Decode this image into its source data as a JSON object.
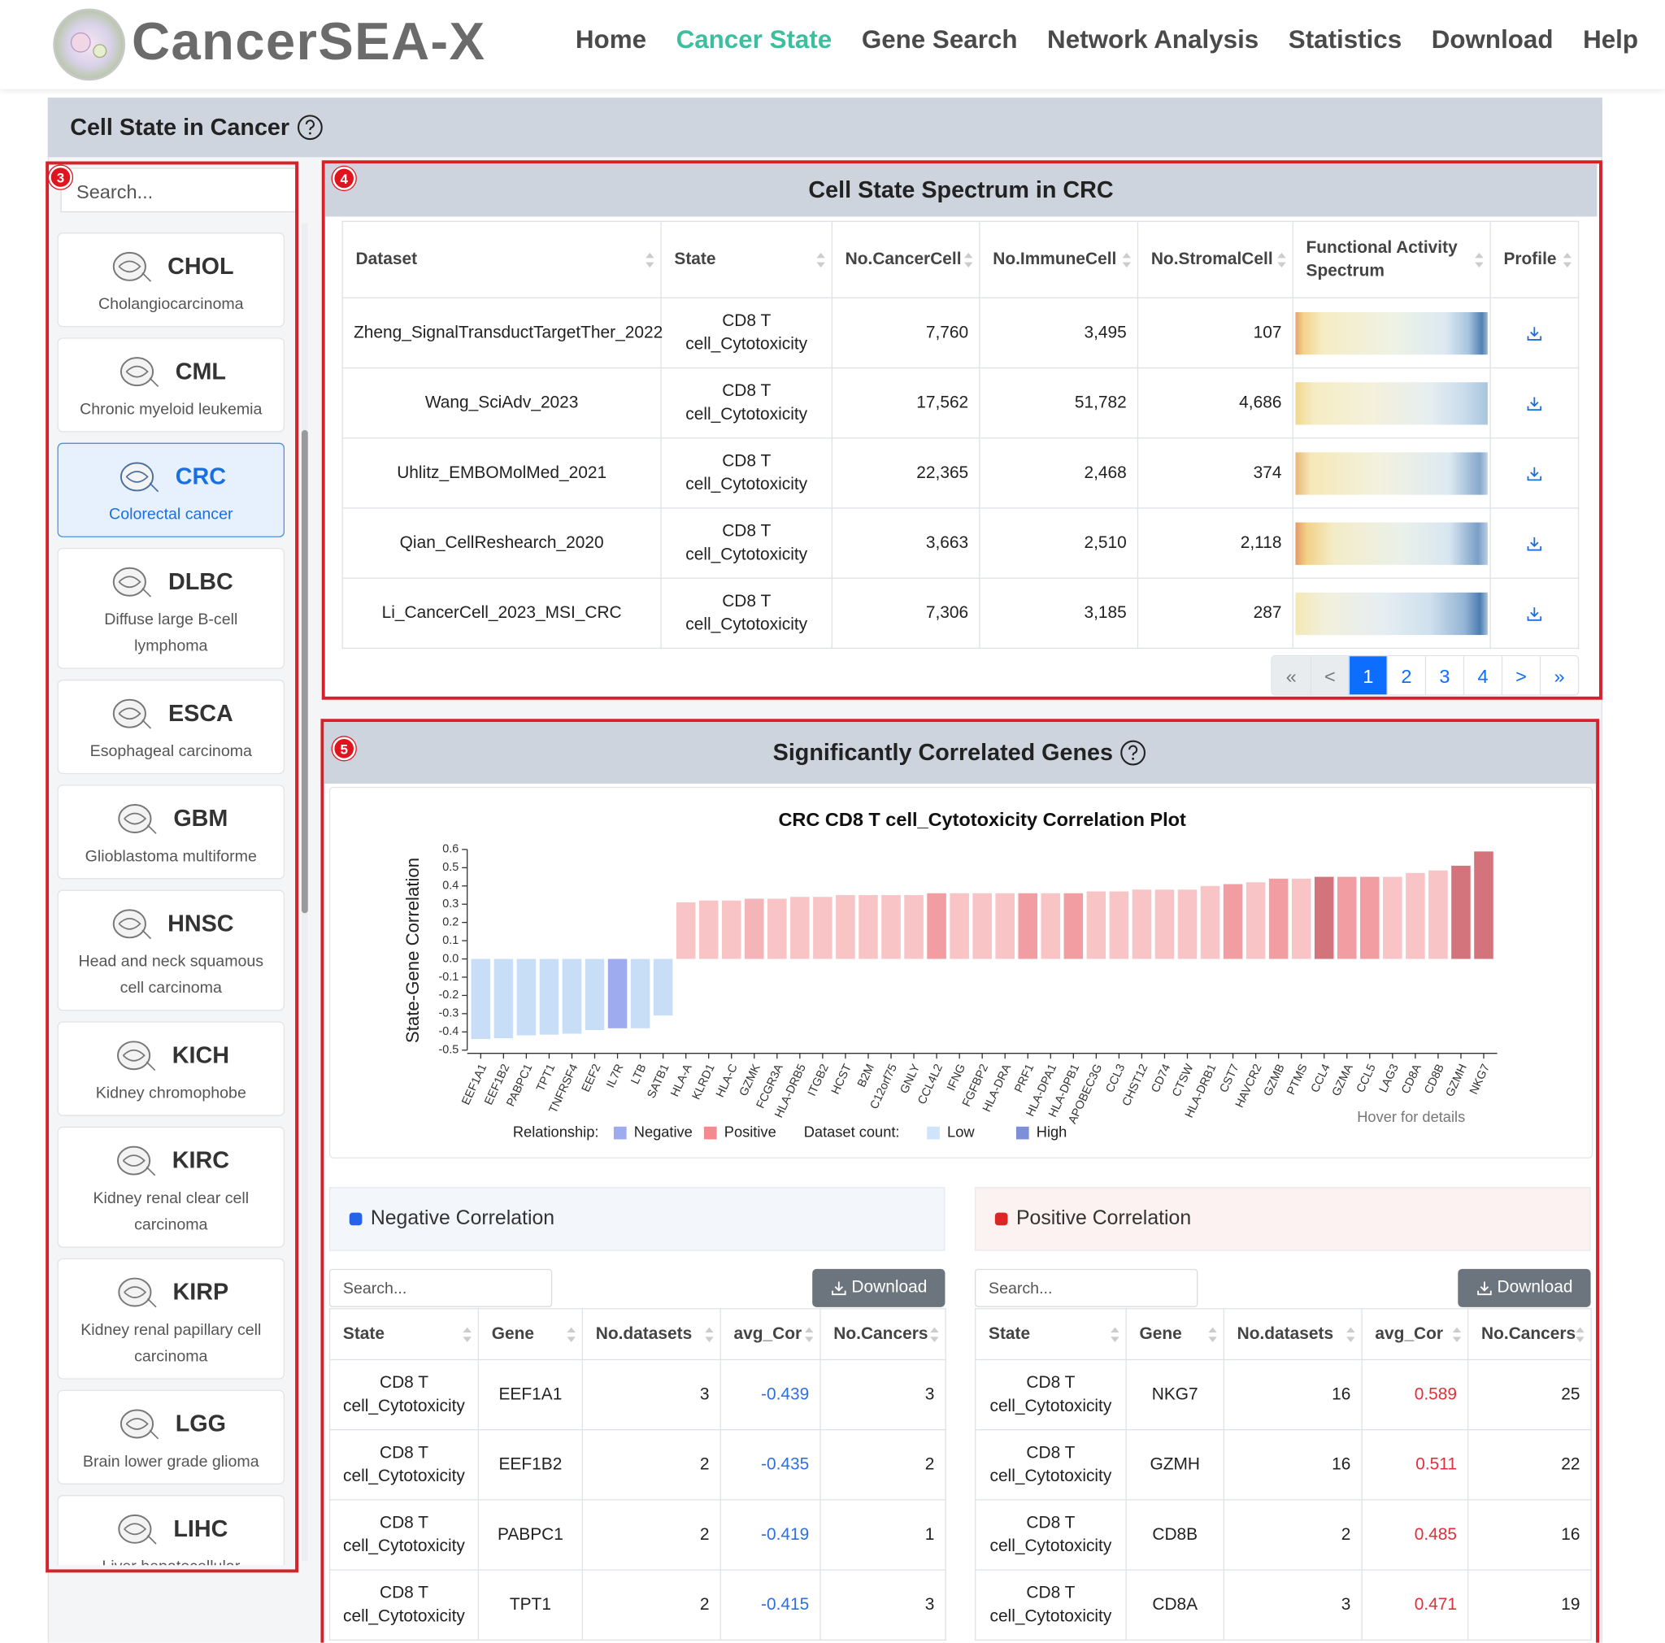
{
  "header": {
    "logo": "CancerSEA-X",
    "nav": [
      "Home",
      "Cancer State",
      "Gene Search",
      "Network Analysis",
      "Statistics",
      "Download",
      "Help"
    ],
    "active_nav": 1
  },
  "panel": {
    "title": "Cell State in Cancer"
  },
  "sidebar": {
    "badge": "3",
    "search": "Search...",
    "selected": 2,
    "cancers": [
      {
        "code": "CHOL",
        "name": "Cholangiocarcinoma"
      },
      {
        "code": "CML",
        "name": "Chronic myeloid leukemia"
      },
      {
        "code": "CRC",
        "name": "Colorectal cancer"
      },
      {
        "code": "DLBC",
        "name": "Diffuse large B-cell lymphoma"
      },
      {
        "code": "ESCA",
        "name": "Esophageal carcinoma"
      },
      {
        "code": "GBM",
        "name": "Glioblastoma multiforme"
      },
      {
        "code": "HNSC",
        "name": "Head and neck squamous cell carcinoma"
      },
      {
        "code": "KICH",
        "name": "Kidney chromophobe"
      },
      {
        "code": "KIRC",
        "name": "Kidney renal clear cell carcinoma"
      },
      {
        "code": "KIRP",
        "name": "Kidney renal papillary cell carcinoma"
      },
      {
        "code": "LGG",
        "name": "Brain lower grade glioma"
      },
      {
        "code": "LIHC",
        "name": "Liver hepatocellular carcinoma"
      }
    ]
  },
  "spectrum": {
    "badge": "4",
    "title": "Cell State Spectrum in CRC",
    "columns": [
      "Dataset",
      "State",
      "No.CancerCell",
      "No.ImmuneCell",
      "No.StromalCell",
      "Functional Activity Spectrum",
      "Profile"
    ],
    "rows": [
      [
        "Zheng_SignalTransductTargetTher_2022",
        "CD8 T cell_Cytotoxicity",
        "7,760",
        "3,495",
        "107"
      ],
      [
        "Wang_SciAdv_2023",
        "CD8 T cell_Cytotoxicity",
        "17,562",
        "51,782",
        "4,686"
      ],
      [
        "Uhlitz_EMBOMolMed_2021",
        "CD8 T cell_Cytotoxicity",
        "22,365",
        "2,468",
        "374"
      ],
      [
        "Qian_CellReshearch_2020",
        "CD8 T cell_Cytotoxicity",
        "3,663",
        "2,510",
        "2,118"
      ],
      [
        "Li_CancerCell_2023_MSI_CRC",
        "CD8 T cell_Cytotoxicity",
        "7,306",
        "3,185",
        "287"
      ]
    ],
    "pagination": [
      "«",
      "<",
      "1",
      "2",
      "3",
      "4",
      ">",
      "»"
    ],
    "active_page": 2
  },
  "genes": {
    "badge": "5",
    "title": "Significantly Correlated Genes"
  },
  "chart_data": {
    "type": "bar",
    "title": "CRC CD8 T cell_Cytotoxicity Correlation Plot",
    "y_label": "State-Gene Correlation",
    "categories": [
      "EEF1A1",
      "EEF1B2",
      "PABPC1",
      "TPT1",
      "TNFRSF4",
      "EEF2",
      "IL7R",
      "LTB",
      "SATB1",
      "HLA-A",
      "KLRD1",
      "HLA-C",
      "GZMK",
      "FCGR3A",
      "HLA-DRB5",
      "ITGB2",
      "HCST",
      "B2M",
      "C12orf75",
      "GNLY",
      "CCL4L2",
      "IFNG",
      "FGFBP2",
      "HLA-DRA",
      "PRF1",
      "HLA-DPA1",
      "HLA-DPB1",
      "APOBEC3G",
      "CCL3",
      "CHST12",
      "CD74",
      "CTSW",
      "HLA-DRB1",
      "CST7",
      "HAVCR2",
      "GZMB",
      "PTMS",
      "CCL4",
      "GZMA",
      "CCL5",
      "LAG3",
      "CD8A",
      "CD8B",
      "GZMH",
      "NKG7"
    ],
    "values": [
      -0.439,
      -0.435,
      -0.419,
      -0.415,
      -0.41,
      -0.39,
      -0.38,
      -0.38,
      -0.31,
      0.31,
      0.32,
      0.32,
      0.33,
      0.33,
      0.34,
      0.34,
      0.35,
      0.35,
      0.35,
      0.35,
      0.36,
      0.36,
      0.36,
      0.36,
      0.36,
      0.36,
      0.36,
      0.37,
      0.37,
      0.38,
      0.38,
      0.38,
      0.4,
      0.41,
      0.42,
      0.44,
      0.44,
      0.45,
      0.45,
      0.45,
      0.45,
      0.471,
      0.485,
      0.511,
      0.589
    ],
    "colors": [
      "#c8def7",
      "#c8def7",
      "#c8def7",
      "#c8def7",
      "#c8def7",
      "#c8def7",
      "#9eacef",
      "#c8def7",
      "#c8def7",
      "#f8c4c6",
      "#f8c4c6",
      "#f8c4c6",
      "#f4b4b8",
      "#f8c4c6",
      "#f8c4c6",
      "#f8c4c6",
      "#f8c4c6",
      "#f8c4c6",
      "#f8c4c6",
      "#f8c4c6",
      "#f29da2",
      "#f8c4c6",
      "#f8c4c6",
      "#f8c4c6",
      "#f29da2",
      "#f8c4c6",
      "#f29da2",
      "#f8c4c6",
      "#f8c4c6",
      "#f8c4c6",
      "#f8c4c6",
      "#f8c4c6",
      "#f8c4c6",
      "#f29da2",
      "#f8c4c6",
      "#f29da2",
      "#f8c4c6",
      "#d3737b",
      "#f29da2",
      "#f29da2",
      "#f8c4c6",
      "#f8c4c6",
      "#f8c4c6",
      "#d3737b",
      "#d3737b"
    ],
    "ylim": [
      -0.5,
      0.6
    ],
    "yticks": [
      -0.5,
      -0.4,
      -0.3,
      -0.2,
      -0.1,
      {
        "value": 0,
        "label": "0.0"
      },
      0.1,
      0.2,
      0.3,
      0.4,
      0.5,
      0.6
    ],
    "grid": false,
    "legend": {
      "relationship": {
        "label": "Relationship:",
        "items": [
          {
            "name": "Negative",
            "color": "#9eacef"
          },
          {
            "name": "Positive",
            "color": "#f4898e"
          }
        ]
      },
      "dataset_count": {
        "label": "Dataset count:",
        "items": [
          {
            "name": "Low",
            "color": "#cfe4fa"
          },
          {
            "name": "High",
            "color": "#7d8fd8"
          }
        ]
      }
    },
    "hint": "Hover for details"
  },
  "negative": {
    "title": "Negative Correlation",
    "search": "Search...",
    "button": "Download",
    "columns": [
      "State",
      "Gene",
      "No.datasets",
      "avg_Cor",
      "No.Cancers"
    ],
    "rows": [
      [
        "CD8 T cell_Cytotoxicity",
        "EEF1A1",
        "3",
        "-0.439",
        "3"
      ],
      [
        "CD8 T cell_Cytotoxicity",
        "EEF1B2",
        "2",
        "-0.435",
        "2"
      ],
      [
        "CD8 T cell_Cytotoxicity",
        "PABPC1",
        "2",
        "-0.419",
        "1"
      ],
      [
        "CD8 T cell_Cytotoxicity",
        "TPT1",
        "2",
        "-0.415",
        "3"
      ]
    ]
  },
  "positive": {
    "title": "Positive Correlation",
    "search": "Search...",
    "button": "Download",
    "columns": [
      "State",
      "Gene",
      "No.datasets",
      "avg_Cor",
      "No.Cancers"
    ],
    "rows": [
      [
        "CD8 T cell_Cytotoxicity",
        "NKG7",
        "16",
        "0.589",
        "25"
      ],
      [
        "CD8 T cell_Cytotoxicity",
        "GZMH",
        "16",
        "0.511",
        "22"
      ],
      [
        "CD8 T cell_Cytotoxicity",
        "CD8B",
        "2",
        "0.485",
        "16"
      ],
      [
        "CD8 T cell_Cytotoxicity",
        "CD8A",
        "3",
        "0.471",
        "19"
      ]
    ]
  }
}
